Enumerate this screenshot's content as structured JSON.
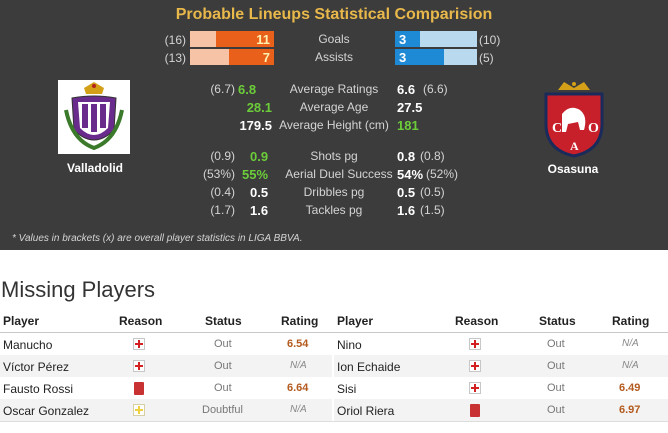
{
  "title": "Probable Lineups Statistical Comparision",
  "home": {
    "name": "Valladolid",
    "goals": {
      "overall": "(16)",
      "value": "11",
      "fraction": 0.69
    },
    "assists": {
      "overall": "(13)",
      "value": "7",
      "fraction": 0.54
    },
    "avg_rating": {
      "overall": "(6.7)",
      "value": "6.8"
    },
    "avg_age": {
      "value": "28.1"
    },
    "avg_height": {
      "value": "179.5"
    },
    "shots": {
      "overall": "(0.9)",
      "value": "0.9"
    },
    "aerial": {
      "overall": "(53%)",
      "value": "55%"
    },
    "dribbles": {
      "overall": "(0.4)",
      "value": "0.5"
    },
    "tackles": {
      "overall": "(1.7)",
      "value": "1.6"
    }
  },
  "away": {
    "name": "Osasuna",
    "goals": {
      "overall": "(10)",
      "value": "3",
      "fraction": 0.3
    },
    "assists": {
      "overall": "(5)",
      "value": "3",
      "fraction": 0.6
    },
    "avg_rating": {
      "overall": "(6.6)",
      "value": "6.6"
    },
    "avg_age": {
      "value": "27.5"
    },
    "avg_height": {
      "value": "181"
    },
    "shots": {
      "overall": "(0.8)",
      "value": "0.8"
    },
    "aerial": {
      "overall": "(52%)",
      "value": "54%"
    },
    "dribbles": {
      "overall": "(0.5)",
      "value": "0.5"
    },
    "tackles": {
      "overall": "(1.5)",
      "value": "1.6"
    }
  },
  "labels": {
    "goals": "Goals",
    "assists": "Assists",
    "avg_rating": "Average Ratings",
    "avg_age": "Average Age",
    "avg_height": "Average Height (cm)",
    "shots": "Shots pg",
    "aerial": "Aerial Duel Success",
    "dribbles": "Dribbles pg",
    "tackles": "Tackles pg"
  },
  "note": "* Values in brackets (x) are overall player statistics in LIGA BBVA.",
  "missing": {
    "title": "Missing Players",
    "headers": {
      "player": "Player",
      "reason": "Reason",
      "status": "Status",
      "rating": "Rating"
    },
    "home": [
      {
        "player": "Manucho",
        "reason": "injury",
        "status": "Out",
        "rating": "6.54"
      },
      {
        "player": "Víctor Pérez",
        "reason": "injury",
        "status": "Out",
        "rating": "N/A"
      },
      {
        "player": "Fausto Rossi",
        "reason": "red-card",
        "status": "Out",
        "rating": "6.64"
      },
      {
        "player": "Oscar Gonzalez",
        "reason": "doubtful",
        "status": "Doubtful",
        "rating": "N/A"
      }
    ],
    "away": [
      {
        "player": "Nino",
        "reason": "injury",
        "status": "Out",
        "rating": "N/A"
      },
      {
        "player": "Ion Echaide",
        "reason": "injury",
        "status": "Out",
        "rating": "N/A"
      },
      {
        "player": "Sisi",
        "reason": "injury",
        "status": "Out",
        "rating": "6.49"
      },
      {
        "player": "Oriol Riera",
        "reason": "red-card",
        "status": "Out",
        "rating": "6.97"
      }
    ]
  },
  "colors": {
    "title": "#e8b84a",
    "home_bar": "#e8601a",
    "home_bar_bg": "#f6c3a6",
    "away_bar": "#1e8ad6",
    "away_bar_bg": "#b9d9ee",
    "highlight": "#6ccd3a",
    "rating": "#b35a1f"
  }
}
